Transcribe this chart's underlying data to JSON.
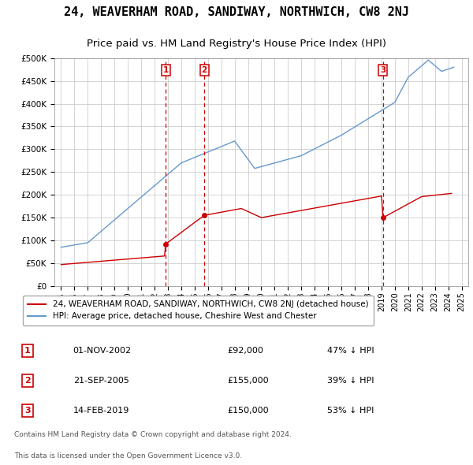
{
  "title": "24, WEAVERHAM ROAD, SANDIWAY, NORTHWICH, CW8 2NJ",
  "subtitle": "Price paid vs. HM Land Registry's House Price Index (HPI)",
  "title_fontsize": 11,
  "subtitle_fontsize": 9.5,
  "legend_line1": "24, WEAVERHAM ROAD, SANDIWAY, NORTHWICH, CW8 2NJ (detached house)",
  "legend_line2": "HPI: Average price, detached house, Cheshire West and Chester",
  "footer1": "Contains HM Land Registry data © Crown copyright and database right 2024.",
  "footer2": "This data is licensed under the Open Government Licence v3.0.",
  "red_color": "#cc0000",
  "blue_color": "#6699cc",
  "transactions": [
    {
      "num": 1,
      "date": "01-NOV-2002",
      "price": "£92,000",
      "pct": "47% ↓ HPI",
      "x": 2002.833
    },
    {
      "num": 2,
      "date": "21-SEP-2005",
      "price": "£155,000",
      "pct": "39% ↓ HPI",
      "x": 2005.722
    },
    {
      "num": 3,
      "date": "14-FEB-2019",
      "price": "£150,000",
      "pct": "53% ↓ HPI",
      "x": 2019.122
    }
  ],
  "transaction_prices": [
    92000,
    155000,
    150000
  ],
  "ylim": [
    0,
    500000
  ],
  "yticks": [
    0,
    50000,
    100000,
    150000,
    200000,
    250000,
    300000,
    350000,
    400000,
    450000,
    500000
  ],
  "xlim_start": 1994.5,
  "xlim_end": 2025.5
}
